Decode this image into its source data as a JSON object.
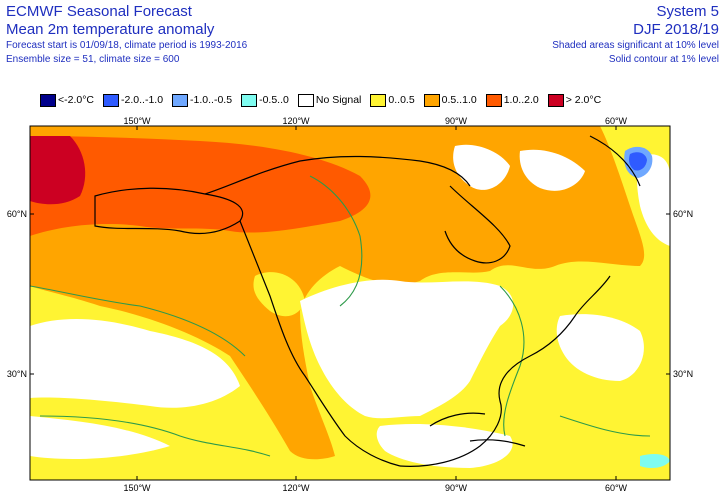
{
  "header": {
    "title": "ECMWF Seasonal Forecast",
    "subtitle": "Mean 2m temperature anomaly",
    "info_line1": "Forecast start is 01/09/18, climate period is 1993-2016",
    "info_line2": "Ensemble size = 51, climate size = 600",
    "system": "System 5",
    "season": "DJF 2018/19",
    "note_line1": "Shaded areas significant at 10% level",
    "note_line2": "Solid contour at 1% level"
  },
  "legend": [
    {
      "label": "<-2.0°C",
      "color": "#00008b"
    },
    {
      "label": "-2.0..-1.0",
      "color": "#2f5bff"
    },
    {
      "label": "-1.0..-0.5",
      "color": "#6fa8ff"
    },
    {
      "label": "-0.5..0",
      "color": "#7ffcf0"
    },
    {
      "label": "No Signal",
      "color": "#ffffff"
    },
    {
      "label": "0..0.5",
      "color": "#fff433"
    },
    {
      "label": "0.5..1.0",
      "color": "#ffa500"
    },
    {
      "label": "1.0..2.0",
      "color": "#ff5a00"
    },
    {
      "label": "> 2.0°C",
      "color": "#cc0022"
    }
  ],
  "axes": {
    "top_lon_labels": [
      "150°W",
      "120°W",
      "90°W",
      "60°W"
    ],
    "bottom_lon_labels": [
      "150°W",
      "120°W",
      "90°W",
      "60°W"
    ],
    "left_lat_labels": [
      "60°N",
      "30°N"
    ],
    "right_lat_labels": [
      "60°N",
      "30°N"
    ]
  },
  "colors": {
    "title_blue": "#1f2fbf",
    "significance_contour": "#2e9a4a",
    "coastline": "#000000"
  }
}
